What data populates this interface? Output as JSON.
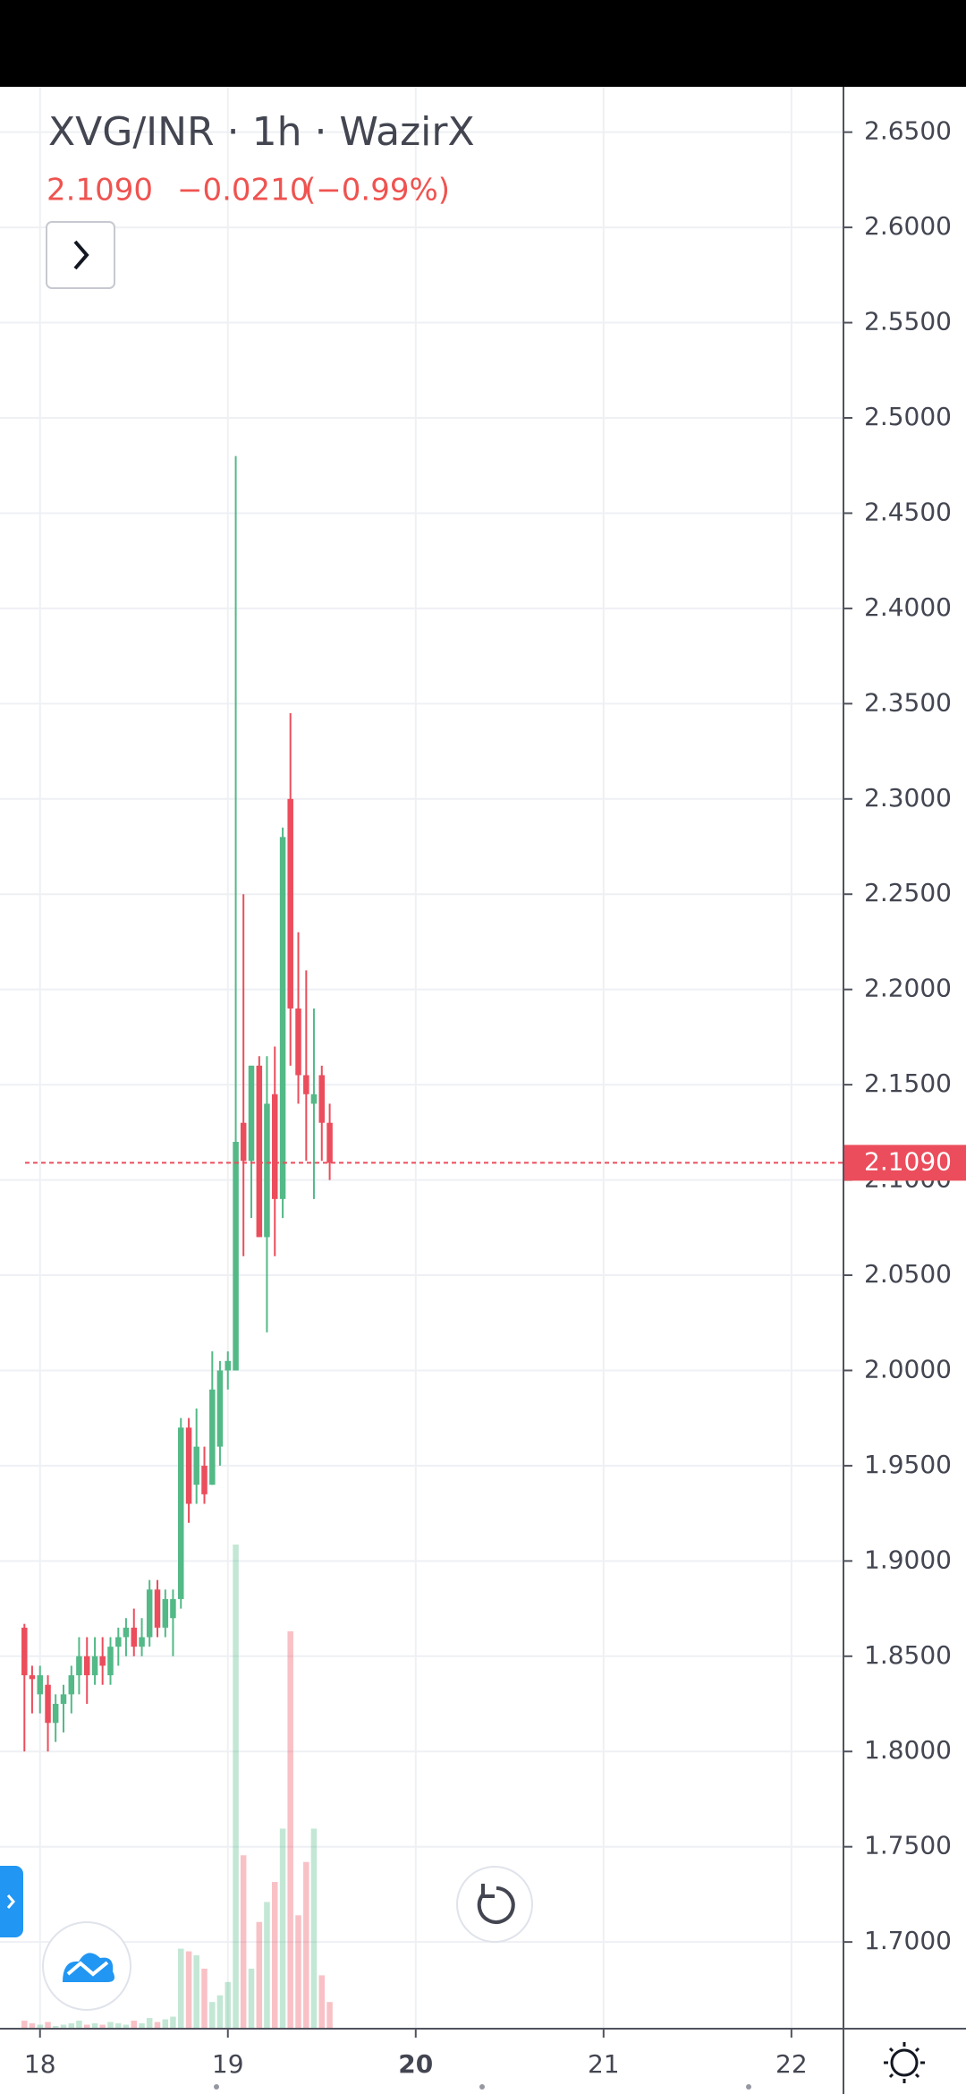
{
  "chart_data": {
    "type": "candlestick",
    "title": "XVG/INR · 1h · WazirX",
    "price": "2.1090",
    "change": "−0.0210",
    "change_pct": "(−0.99%)",
    "up_color": "#53b987",
    "down_color": "#eb4d5c",
    "grid": true,
    "xlim": [
      17.787,
      22.277
    ],
    "xticks": [
      18,
      19,
      20,
      21,
      22
    ],
    "ylim": [
      1.6545,
      2.6738
    ],
    "yticks": [
      {
        "value": 2.65,
        "label": "2.6500"
      },
      {
        "value": 2.6,
        "label": "2.6000"
      },
      {
        "value": 2.55,
        "label": "2.5500"
      },
      {
        "value": 2.5,
        "label": "2.5000"
      },
      {
        "value": 2.45,
        "label": "2.4500"
      },
      {
        "value": 2.4,
        "label": "2.4000"
      },
      {
        "value": 2.35,
        "label": "2.3500"
      },
      {
        "value": 2.3,
        "label": "2.3000"
      },
      {
        "value": 2.25,
        "label": "2.2500"
      },
      {
        "value": 2.2,
        "label": "2.2000"
      },
      {
        "value": 2.15,
        "label": "2.1500"
      },
      {
        "value": 2.1,
        "label": "2.1000"
      },
      {
        "value": 2.05,
        "label": "2.0500"
      },
      {
        "value": 2.0,
        "label": "2.0000"
      },
      {
        "value": 1.95,
        "label": "1.9500"
      },
      {
        "value": 1.9,
        "label": "1.9000"
      },
      {
        "value": 1.85,
        "label": "1.8500"
      },
      {
        "value": 1.8,
        "label": "1.8000"
      },
      {
        "value": 1.75,
        "label": "1.7500"
      },
      {
        "value": 1.7,
        "label": "1.7000"
      }
    ],
    "x": [
      17.917,
      17.958,
      18.0,
      18.042,
      18.083,
      18.125,
      18.167,
      18.208,
      18.25,
      18.292,
      18.333,
      18.375,
      18.417,
      18.458,
      18.5,
      18.542,
      18.583,
      18.625,
      18.667,
      18.708,
      18.75,
      18.792,
      18.833,
      18.875,
      18.917,
      18.958,
      19.0,
      19.042,
      19.083,
      19.125,
      19.167,
      19.208,
      19.25,
      19.292,
      19.333,
      19.375,
      19.417,
      19.458,
      19.5,
      19.542
    ],
    "open": [
      1.865,
      1.84,
      1.83,
      1.835,
      1.815,
      1.825,
      1.83,
      1.84,
      1.85,
      1.84,
      1.85,
      1.84,
      1.855,
      1.86,
      1.865,
      1.855,
      1.86,
      1.885,
      1.865,
      1.87,
      1.88,
      1.97,
      1.94,
      1.95,
      1.94,
      1.96,
      2.0,
      2.0,
      2.13,
      2.11,
      2.16,
      2.07,
      2.145,
      2.09,
      2.3,
      2.19,
      2.155,
      2.14,
      2.155,
      2.13
    ],
    "high": [
      1.867,
      1.845,
      1.845,
      1.84,
      1.83,
      1.835,
      1.845,
      1.86,
      1.86,
      1.86,
      1.86,
      1.86,
      1.865,
      1.87,
      1.875,
      1.87,
      1.89,
      1.89,
      1.885,
      1.885,
      1.975,
      1.975,
      1.98,
      1.96,
      2.01,
      2.005,
      2.01,
      2.48,
      2.25,
      2.16,
      2.165,
      2.165,
      2.17,
      2.285,
      2.345,
      2.23,
      2.21,
      2.19,
      2.16,
      2.14
    ],
    "low": [
      1.8,
      1.82,
      1.82,
      1.8,
      1.805,
      1.81,
      1.82,
      1.83,
      1.825,
      1.835,
      1.835,
      1.835,
      1.845,
      1.85,
      1.85,
      1.85,
      1.855,
      1.86,
      1.86,
      1.85,
      1.875,
      1.92,
      1.93,
      1.93,
      1.94,
      1.95,
      1.99,
      2.0,
      2.06,
      2.08,
      2.07,
      2.02,
      2.06,
      2.08,
      2.16,
      2.14,
      2.11,
      2.09,
      2.11,
      2.1
    ],
    "close": [
      1.84,
      1.838,
      1.84,
      1.815,
      1.825,
      1.83,
      1.84,
      1.85,
      1.84,
      1.85,
      1.845,
      1.855,
      1.86,
      1.865,
      1.855,
      1.86,
      1.885,
      1.865,
      1.88,
      1.88,
      1.97,
      1.93,
      1.96,
      1.935,
      1.99,
      2.0,
      2.005,
      2.12,
      2.11,
      2.16,
      2.07,
      2.14,
      2.09,
      2.28,
      2.19,
      2.155,
      2.145,
      2.145,
      2.13,
      2.109
    ],
    "volume": [
      6,
      4,
      3,
      5,
      2,
      3,
      4,
      6,
      3,
      4,
      3,
      5,
      4,
      3,
      6,
      4,
      8,
      5,
      7,
      9,
      60,
      58,
      55,
      45,
      20,
      25,
      35,
      363,
      130,
      45,
      80,
      95,
      110,
      150,
      298,
      85,
      125,
      150,
      40,
      20
    ]
  }
}
